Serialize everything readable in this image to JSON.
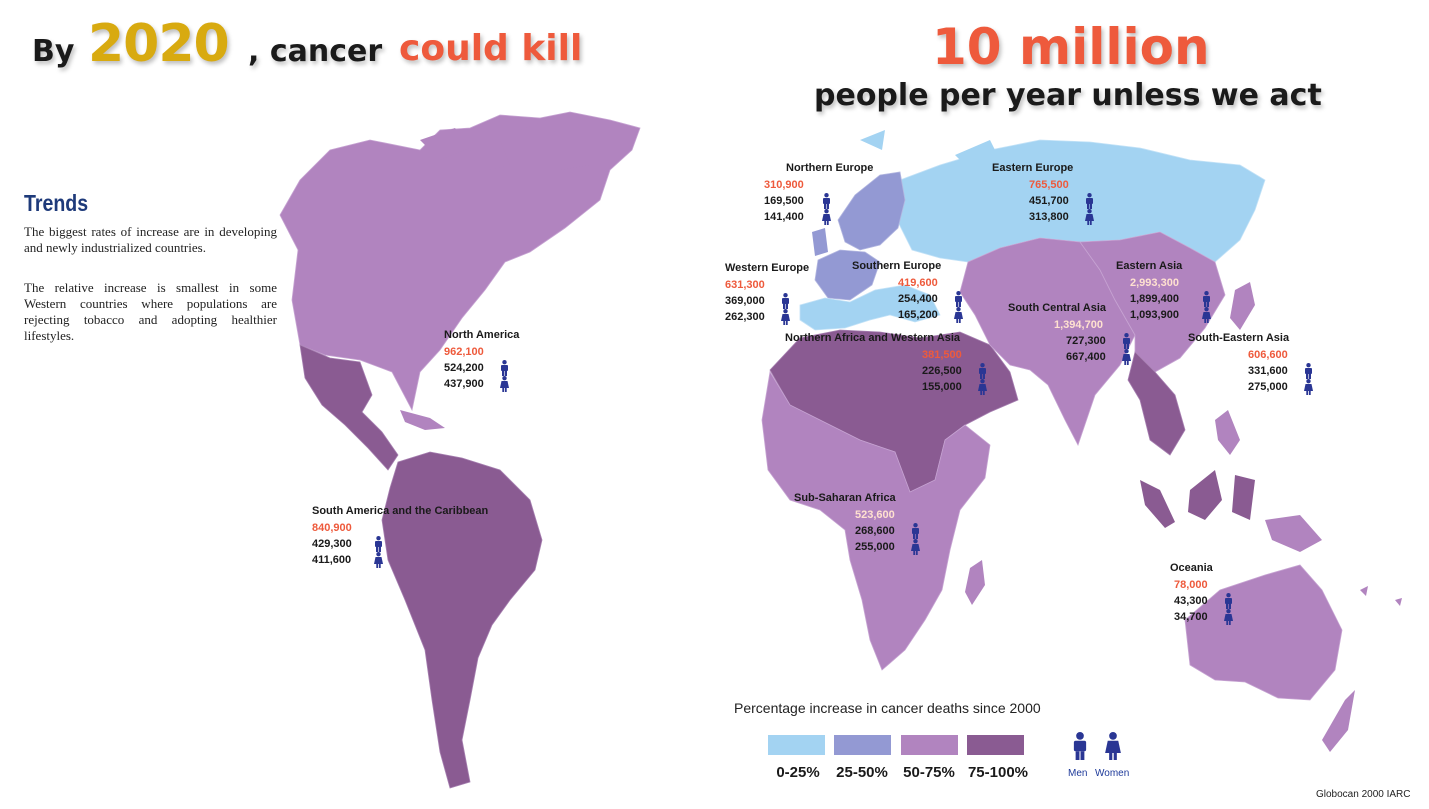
{
  "headline": {
    "part1": "By",
    "year": "2020",
    "part2": ", cancer",
    "part3": "could kill",
    "number": "10 million",
    "subline": "people per year unless we act"
  },
  "trends": {
    "title": "Trends",
    "paragraph1": "The biggest rates of increase are in developing and newly industrialized countries.",
    "paragraph2": "The relative increase is smallest in some Western countries where populations are rejecting tobacco and adopting healthier lifestyles."
  },
  "regions": [
    {
      "name": "North America",
      "total": "962,100",
      "men": "524,200",
      "women": "437,900"
    },
    {
      "name": "South America and the Caribbean",
      "total": "840,900",
      "men": "429,300",
      "women": "411,600"
    },
    {
      "name": "Northern Europe",
      "total": "310,900",
      "men": "169,500",
      "women": "141,400"
    },
    {
      "name": "Eastern Europe",
      "total": "765,500",
      "men": "451,700",
      "women": "313,800"
    },
    {
      "name": "Western Europe",
      "total": "631,300",
      "men": "369,000",
      "women": "262,300"
    },
    {
      "name": "Southern Europe",
      "total": "419,600",
      "men": "254,400",
      "women": "165,200"
    },
    {
      "name": "Eastern Asia",
      "total": "2,993,300",
      "men": "1,899,400",
      "women": "1,093,900"
    },
    {
      "name": "South Central Asia",
      "total": "1,394,700",
      "men": "727,300",
      "women": "667,400"
    },
    {
      "name": "Northern Africa and Western Asia",
      "total": "381,500",
      "men": "226,500",
      "women": "155,000"
    },
    {
      "name": "South-Eastern Asia",
      "total": "606,600",
      "men": "331,600",
      "women": "275,000"
    },
    {
      "name": "Sub-Saharan Africa",
      "total": "523,600",
      "men": "268,600",
      "women": "255,000"
    },
    {
      "name": "Oceania",
      "total": "78,000",
      "men": "43,300",
      "women": "34,700"
    }
  ],
  "legend": {
    "title": "Percentage increase in cancer deaths since 2000",
    "bins": [
      {
        "label": "0-25%",
        "color": "#a3d3f2"
      },
      {
        "label": "25-50%",
        "color": "#9399d3"
      },
      {
        "label": "50-75%",
        "color": "#b184bf"
      },
      {
        "label": "75-100%",
        "color": "#8a5b92"
      }
    ],
    "men_label": "Men",
    "women_label": "Women",
    "figure_color": "#2a3694"
  },
  "source": "Globocan 2000 IARC"
}
